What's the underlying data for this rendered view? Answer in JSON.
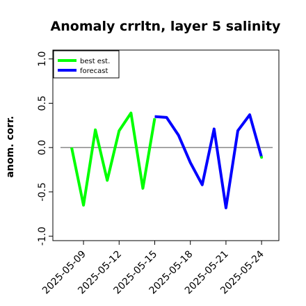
{
  "chart_data": {
    "type": "line",
    "title": "Anomaly crrltn, layer 5 salinity",
    "ylabel": "anom. corr.",
    "xlabel": "",
    "ylim": [
      -1.05,
      1.1
    ],
    "yticks": [
      -1.0,
      -0.5,
      0.0,
      0.5,
      1.0
    ],
    "ytick_labels": [
      "-1.0",
      "-0.5",
      "0.0",
      "0.5",
      "1.0"
    ],
    "reference_line": 0,
    "legend": {
      "position": "top-left",
      "entries": [
        "best est.",
        "forecast"
      ]
    },
    "x_dates": [
      "2025-05-08",
      "2025-05-09",
      "2025-05-10",
      "2025-05-11",
      "2025-05-12",
      "2025-05-13",
      "2025-05-14",
      "2025-05-15",
      "2025-05-16",
      "2025-05-17",
      "2025-05-18",
      "2025-05-19",
      "2025-05-20",
      "2025-05-21",
      "2025-05-22",
      "2025-05-23",
      "2025-05-24"
    ],
    "xticks": [
      "2025-05-09",
      "2025-05-12",
      "2025-05-15",
      "2025-05-18",
      "2025-05-21",
      "2025-05-24"
    ],
    "xtick_colors": [
      "#000000",
      "#000000",
      "#008000",
      "#000000",
      "#000000",
      "#000000"
    ],
    "series": [
      {
        "name": "best est.",
        "color": "#00ff00",
        "values": [
          0.0,
          -0.65,
          0.2,
          -0.37,
          0.19,
          0.39,
          -0.46,
          0.33,
          null,
          null,
          null,
          null,
          null,
          null,
          null,
          null,
          null
        ]
      },
      {
        "name": "forecast",
        "color": "#0000ff",
        "values": [
          null,
          null,
          null,
          null,
          null,
          null,
          null,
          0.35,
          0.34,
          0.14,
          -0.17,
          -0.42,
          0.21,
          -0.68,
          0.19,
          0.37,
          -0.11
        ]
      }
    ]
  }
}
